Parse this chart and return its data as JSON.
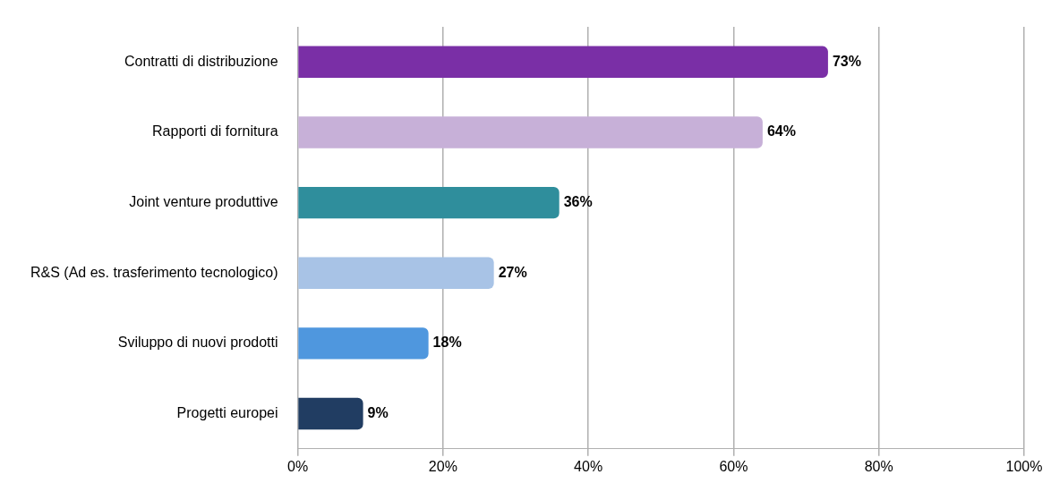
{
  "chart_data": {
    "type": "bar",
    "orientation": "horizontal",
    "categories": [
      "Contratti di distribuzione",
      "Rapporti di fornitura",
      "Joint venture produttive",
      "R&S (Ad es. trasferimento tecnologico)",
      "Sviluppo di nuovi prodotti",
      "Progetti europei"
    ],
    "values": [
      73,
      64,
      36,
      27,
      18,
      9
    ],
    "colors": [
      "#7a2fa6",
      "#c7b0d8",
      "#2f8e9c",
      "#a8c3e6",
      "#4f97de",
      "#213d62"
    ],
    "value_labels": [
      "73%",
      "64%",
      "36%",
      "27%",
      "18%",
      "9%"
    ],
    "xlim": [
      0,
      100
    ],
    "xticks": [
      {
        "value": 0,
        "label": "0%"
      },
      {
        "value": 20,
        "label": "20%"
      },
      {
        "value": 40,
        "label": "40%"
      },
      {
        "value": 60,
        "label": "60%"
      },
      {
        "value": 80,
        "label": "80%"
      },
      {
        "value": 100,
        "label": "100%"
      }
    ],
    "grid": "x"
  }
}
